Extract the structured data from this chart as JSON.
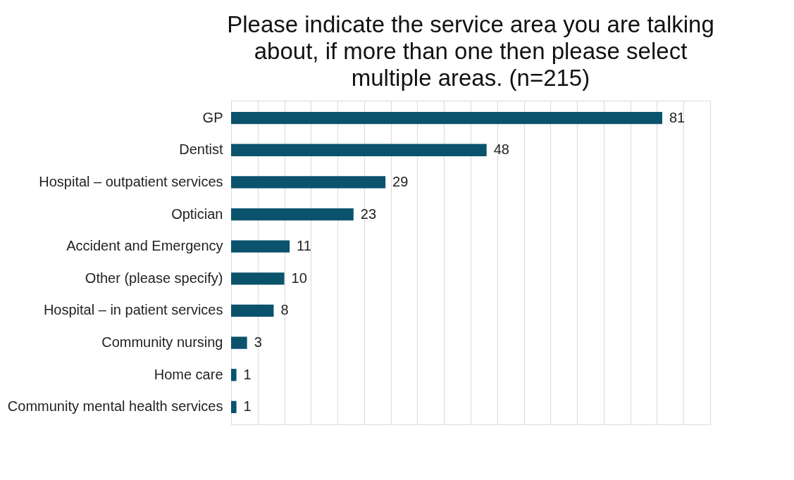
{
  "chart_data": {
    "type": "bar",
    "orientation": "horizontal",
    "title": "Please indicate the service area you are talking about, if more than one then please select multiple areas. (n=215)",
    "categories": [
      "GP",
      "Dentist",
      "Hospital – outpatient services",
      "Optician",
      "Accident and Emergency",
      "Other (please specify)",
      "Hospital – in patient services",
      "Community nursing",
      "Home care",
      "Community mental health services"
    ],
    "values": [
      81,
      48,
      29,
      23,
      11,
      10,
      8,
      3,
      1,
      1
    ],
    "color": "#0b526c",
    "xlim": [
      0,
      90
    ],
    "tick_labels": "y",
    "grid": "x",
    "data_labels": true
  }
}
